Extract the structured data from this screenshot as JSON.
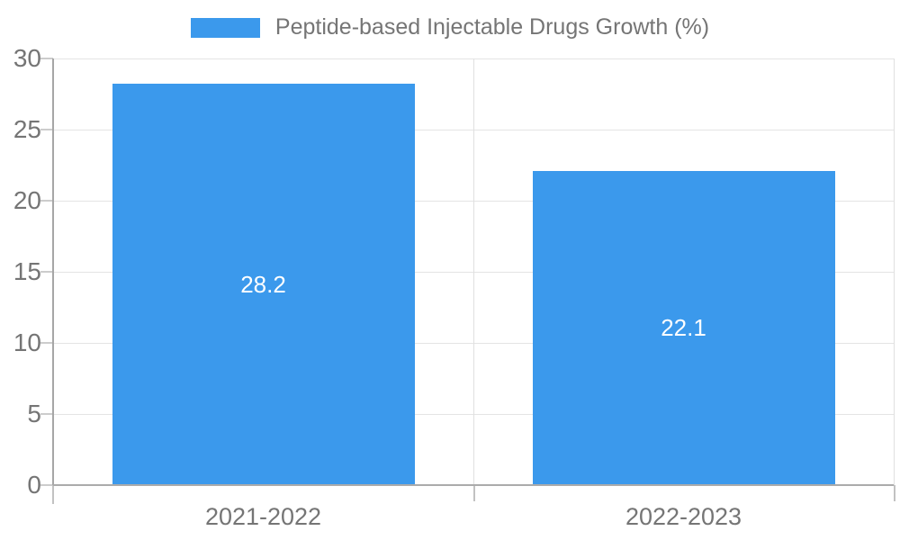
{
  "legend": {
    "label": "Peptide-based Injectable Drugs Growth (%)",
    "swatch_color": "#3b99ec"
  },
  "chart_data": {
    "type": "bar",
    "title": "",
    "categories": [
      "2021-2022",
      "2022-2023"
    ],
    "values": [
      28.2,
      22.1
    ],
    "data_labels": [
      "28.2",
      "22.1"
    ],
    "legend": "Peptide-based Injectable Drugs Growth (%)",
    "legend_position": "top",
    "xlabel": "",
    "ylabel": "",
    "ylim": [
      0,
      30
    ],
    "yticks": [
      0,
      5,
      10,
      15,
      20,
      25,
      30
    ],
    "grid": true,
    "bar_color": "#3b99ec",
    "bar_label_color": "#ffffff",
    "axis_text_color": "#757575"
  }
}
